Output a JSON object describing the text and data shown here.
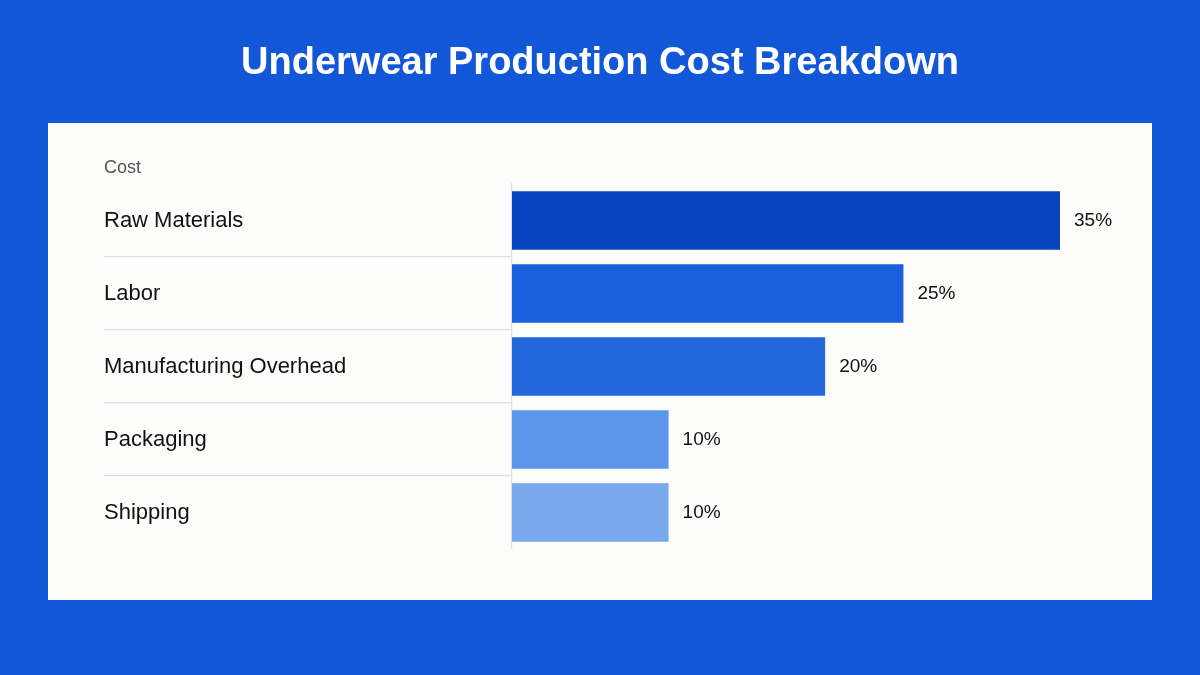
{
  "chart_data": {
    "type": "bar",
    "title": "Underwear Production Cost Breakdown",
    "ylabel": "Cost",
    "orientation": "horizontal",
    "categories": [
      "Raw Materials",
      "Labor",
      "Manufacturing Overhead",
      "Packaging",
      "Shipping"
    ],
    "values": [
      35,
      25,
      20,
      10,
      10
    ],
    "colors": [
      "#0a45c0",
      "#1a5fdb",
      "#2468dd",
      "#5c96ea",
      "#7aaaed"
    ],
    "value_labels": [
      "35%",
      "25%",
      "20%",
      "10%",
      "10%"
    ],
    "tick_labels": "y"
  }
}
